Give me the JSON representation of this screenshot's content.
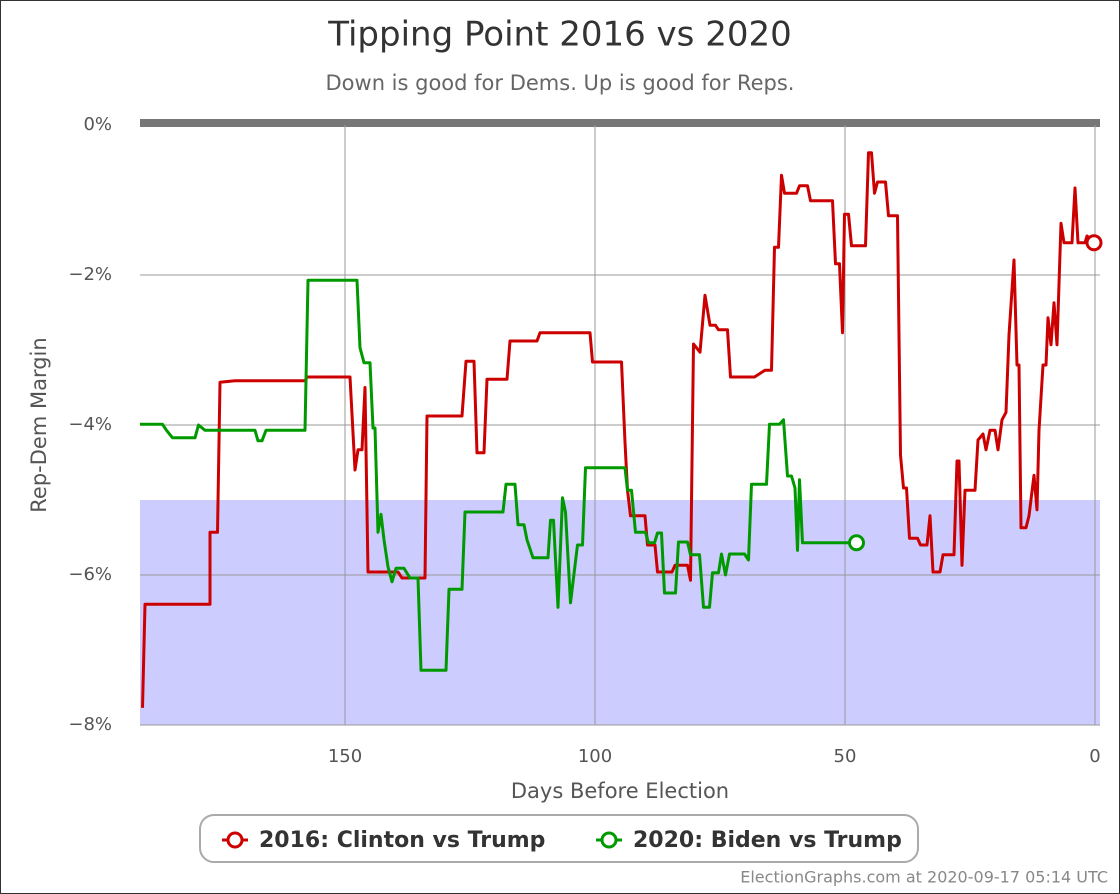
{
  "chart_data": {
    "type": "line",
    "title": "Tipping Point 2016 vs 2020",
    "subtitle": "Down is good for Dems. Up is good for Reps.",
    "x_label": "Days Before Election",
    "y_label": "Rep-Dem Margin",
    "footer": "ElectionGraphs.com at 2020-09-17 05:14 UTC",
    "xlim": [
      191,
      -1
    ],
    "xticks": [
      150,
      100,
      50,
      0
    ],
    "ylim": [
      -8,
      0
    ],
    "yticks": [
      {
        "value": 0,
        "label": "0%"
      },
      {
        "value": -2,
        "label": "−2%"
      },
      {
        "value": -4,
        "label": "−4%"
      },
      {
        "value": -6,
        "label": "−6%"
      },
      {
        "value": -8,
        "label": "−8%"
      }
    ],
    "grid": true,
    "shaded_range": [
      -8,
      -5
    ],
    "shade_color": "#ccccff",
    "legend": "bottom",
    "series": [
      {
        "name": "2016: Clinton vs Trump",
        "color": "#cc0000",
        "x": [
          190.5,
          190,
          177,
          177,
          175.5,
          175,
          172,
          158,
          157.6,
          149,
          148,
          147.4,
          146.6,
          146,
          145.4,
          139.4,
          138.6,
          134,
          133.6,
          126.6,
          125.8,
          124.2,
          123.6,
          122.2,
          121.6,
          117.6,
          117,
          111.6,
          111,
          101,
          100.5,
          94.7,
          94,
          93.5,
          92.9,
          90,
          89.5,
          88,
          87.5,
          84.6,
          84,
          81.5,
          80.9,
          80.3,
          79,
          78,
          77,
          75.9,
          75.3,
          73.5,
          72.9,
          68.1,
          66,
          64.7,
          64.1,
          63.3,
          62.7,
          62.1,
          59.7,
          59.1,
          57.5,
          56.9,
          52.5,
          51.9,
          51.1,
          50.5,
          50.1,
          49.3,
          48.7,
          45.9,
          45.3,
          44.7,
          44.1,
          43.5,
          41.9,
          41.3,
          39.5,
          38.9,
          38.3,
          37.7,
          37.1,
          35.5,
          34.9,
          33.6,
          33,
          32.4,
          31,
          30.4,
          28.2,
          27.6,
          27.2,
          26.6,
          26,
          24,
          23.4,
          22.4,
          21.8,
          21,
          20,
          19.4,
          18.6,
          17.8,
          17.2,
          16.2,
          15.6,
          15.2,
          14.8,
          13.8,
          13.2,
          12.2,
          11.6,
          11.2,
          10.4,
          9.8,
          9.4,
          8.8,
          8.2,
          7.6,
          6.8,
          6.2,
          4.6,
          4,
          3.4,
          2,
          1.6,
          0.2
        ],
        "values": [
          -7.77,
          -6.39,
          -6.39,
          -5.43,
          -5.43,
          -3.43,
          -3.41,
          -3.41,
          -3.36,
          -3.36,
          -4.6,
          -4.33,
          -4.33,
          -3.5,
          -5.96,
          -5.96,
          -6.04,
          -6.04,
          -3.88,
          -3.88,
          -3.15,
          -3.15,
          -4.37,
          -4.37,
          -3.39,
          -3.39,
          -2.88,
          -2.88,
          -2.77,
          -2.77,
          -3.16,
          -3.16,
          -4.23,
          -4.87,
          -5.21,
          -5.21,
          -5.6,
          -5.6,
          -5.96,
          -5.96,
          -5.87,
          -5.87,
          -6.07,
          -2.92,
          -3.03,
          -2.27,
          -2.67,
          -2.67,
          -2.73,
          -2.73,
          -3.36,
          -3.36,
          -3.27,
          -3.27,
          -1.63,
          -1.63,
          -0.67,
          -0.91,
          -0.91,
          -0.81,
          -0.81,
          -1.01,
          -1.01,
          -1.85,
          -1.85,
          -2.77,
          -1.19,
          -1.19,
          -1.61,
          -1.61,
          -0.37,
          -0.37,
          -0.91,
          -0.76,
          -0.76,
          -1.21,
          -1.21,
          -4.4,
          -4.84,
          -4.84,
          -5.51,
          -5.51,
          -5.6,
          -5.6,
          -5.21,
          -5.96,
          -5.96,
          -5.73,
          -5.73,
          -4.48,
          -4.48,
          -5.87,
          -4.87,
          -4.87,
          -4.2,
          -4.12,
          -4.33,
          -4.07,
          -4.07,
          -4.33,
          -3.93,
          -3.83,
          -2.8,
          -1.8,
          -3.2,
          -3.2,
          -5.37,
          -5.37,
          -5.21,
          -4.67,
          -5.13,
          -4.07,
          -3.2,
          -3.2,
          -2.57,
          -2.93,
          -2.37,
          -2.93,
          -1.31,
          -1.57,
          -1.57,
          -0.84,
          -1.57,
          -1.57,
          -1.48,
          -1.57
        ]
      },
      {
        "name": "2020: Biden vs Trump",
        "color": "#009900",
        "x": [
          191,
          186.5,
          185.7,
          184.5,
          180,
          179.3,
          178,
          168,
          167.4,
          166.6,
          165.8,
          158,
          157.4,
          147.6,
          147,
          146.2,
          145,
          144.4,
          144,
          143.4,
          142.8,
          142.2,
          141.4,
          140.6,
          139.8,
          138.2,
          137,
          135.4,
          134.8,
          129.8,
          129.2,
          126.6,
          126,
          118.4,
          117.8,
          116,
          115.4,
          114.2,
          113.6,
          112.4,
          109.4,
          108.9,
          108.3,
          107.4,
          106.5,
          105.9,
          104.9,
          104.3,
          103.5,
          102.5,
          101.9,
          94,
          93.5,
          92.7,
          91.9,
          89.9,
          89.3,
          88.1,
          87.5,
          86.7,
          86.1,
          83.9,
          83.3,
          81.5,
          80.9,
          79.1,
          78.3,
          77.1,
          76.5,
          75.3,
          74.7,
          73.9,
          73.1,
          70.1,
          69.3,
          68.7,
          65.7,
          65.1,
          63.1,
          62.3,
          61.5,
          60.7,
          60,
          59.5,
          59.1,
          58.5,
          47.7
        ],
        "values": [
          -3.99,
          -3.99,
          -4.07,
          -4.17,
          -4.17,
          -4,
          -4.07,
          -4.07,
          -4.21,
          -4.21,
          -4.07,
          -4.07,
          -2.07,
          -2.07,
          -2.97,
          -3.17,
          -3.17,
          -4.04,
          -4.04,
          -5.43,
          -5.19,
          -5.53,
          -5.89,
          -6.09,
          -5.91,
          -5.91,
          -6.04,
          -6.04,
          -7.27,
          -7.27,
          -6.19,
          -6.19,
          -5.16,
          -5.16,
          -4.79,
          -4.79,
          -5.33,
          -5.33,
          -5.53,
          -5.77,
          -5.77,
          -5.27,
          -5.27,
          -6.43,
          -4.97,
          -5.16,
          -6.37,
          -6.04,
          -5.6,
          -5.6,
          -4.57,
          -4.57,
          -4.87,
          -4.87,
          -5.43,
          -5.43,
          -5.57,
          -5.57,
          -5.44,
          -5.44,
          -6.24,
          -6.24,
          -5.56,
          -5.56,
          -5.73,
          -5.73,
          -6.43,
          -6.43,
          -5.97,
          -5.97,
          -5.72,
          -6,
          -5.72,
          -5.72,
          -5.8,
          -4.79,
          -4.79,
          -3.99,
          -3.99,
          -3.93,
          -4.68,
          -4.68,
          -4.84,
          -5.67,
          -4.73,
          -5.57,
          -5.57
        ]
      }
    ]
  }
}
